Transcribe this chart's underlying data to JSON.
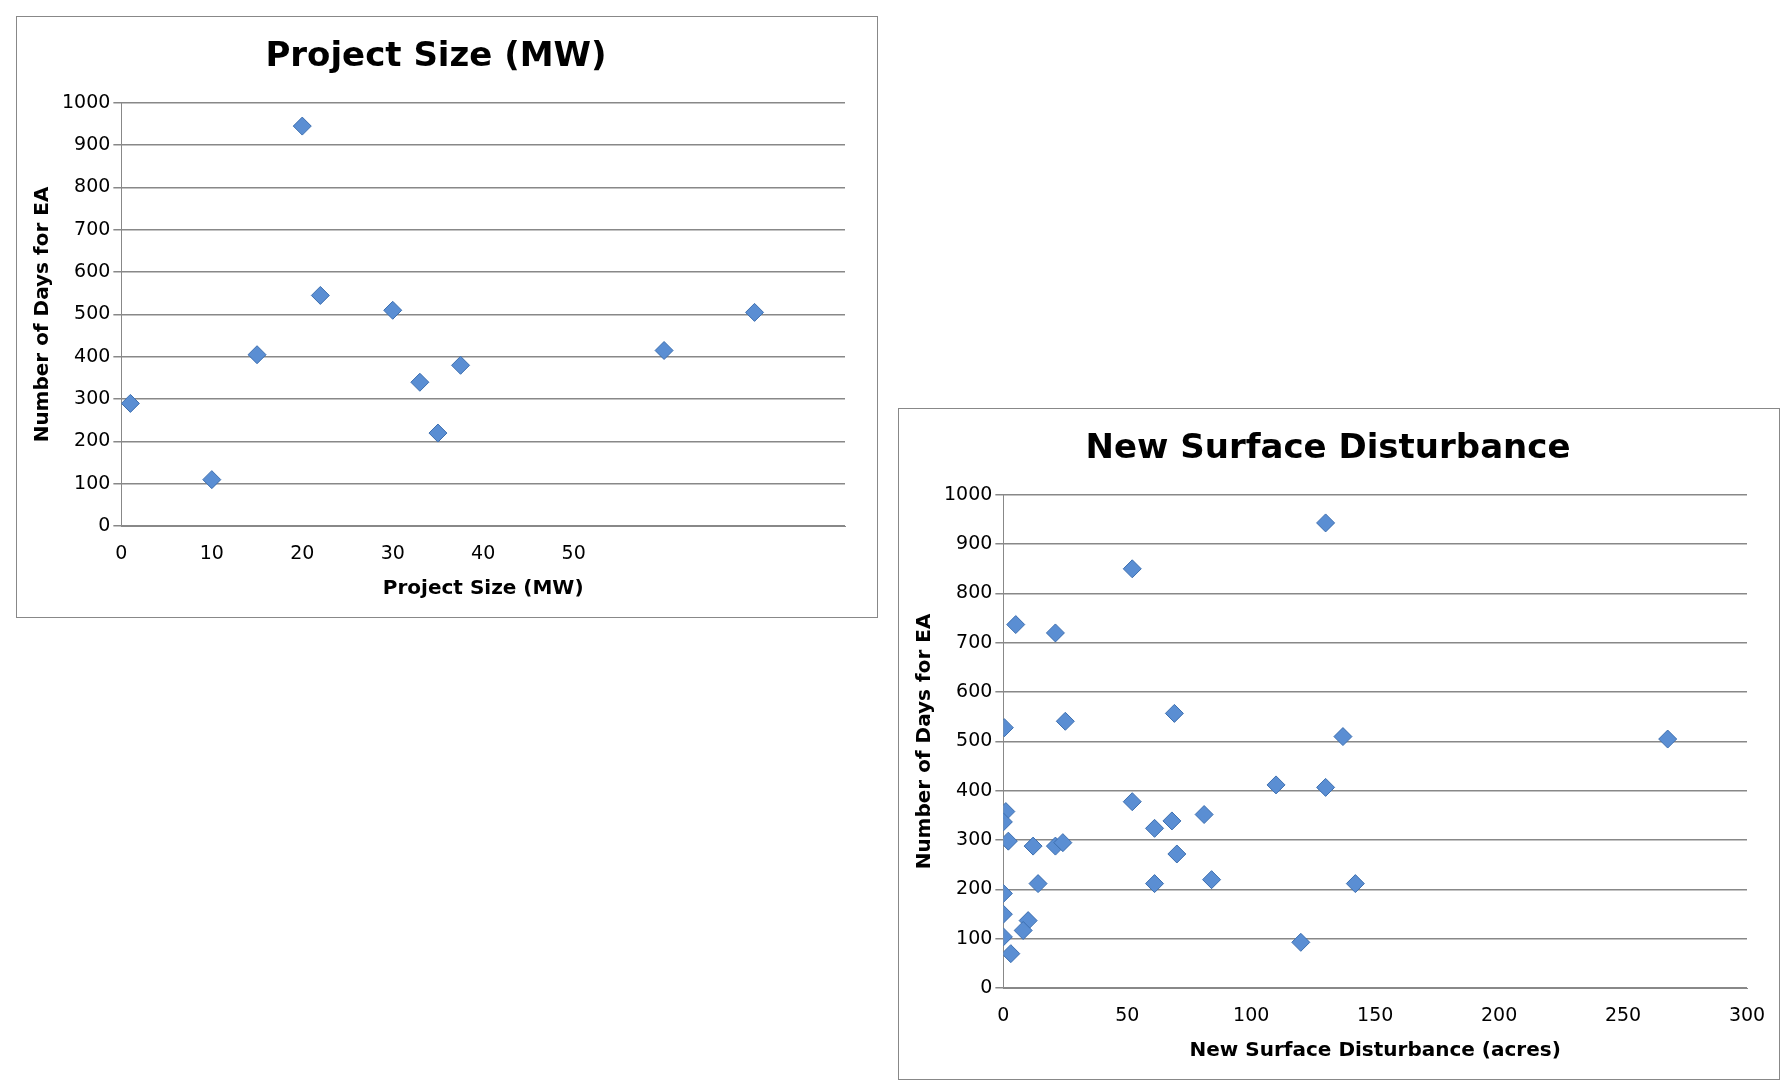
{
  "chart_data": [
    {
      "type": "scatter",
      "title": "Project Size (MW)",
      "xlabel": "Project Size (MW)",
      "ylabel": "Number of Days for EA",
      "x": [
        1,
        10,
        15,
        20,
        22,
        30,
        33,
        35,
        37.5,
        60,
        70
      ],
      "values": [
        290,
        110,
        405,
        945,
        545,
        510,
        340,
        220,
        380,
        415,
        505
      ],
      "color": "#5a8ed3",
      "marker": "diamond",
      "xlim": [
        0,
        80
      ],
      "xticks": [
        0,
        10,
        20,
        30,
        40,
        50
      ],
      "ylim": [
        0,
        1000
      ],
      "yticks": [
        0,
        100,
        200,
        300,
        400,
        500,
        600,
        700,
        800,
        900,
        1000
      ],
      "grid": "y",
      "legend": false
    },
    {
      "type": "scatter",
      "title": "New Surface Disturbance",
      "xlabel": "New Surface Disturbance (acres)",
      "ylabel": "Number of Days for EA",
      "x": [
        52,
        130,
        5,
        21,
        0.4,
        25,
        69,
        137,
        268,
        110,
        130,
        52,
        1,
        0,
        61,
        68,
        81,
        2,
        12,
        21,
        24,
        70,
        14,
        61,
        84,
        142,
        0,
        0,
        10,
        8,
        0,
        3,
        120
      ],
      "values": [
        850,
        943,
        737,
        720,
        528,
        541,
        557,
        510,
        505,
        412,
        407,
        378,
        358,
        337,
        324,
        339,
        352,
        298,
        288,
        288,
        295,
        272,
        212,
        212,
        220,
        212,
        192,
        150,
        137,
        117,
        104,
        70,
        93
      ],
      "color": "#5a8ed3",
      "marker": "diamond",
      "xlim": [
        0,
        300
      ],
      "xticks": [
        0,
        50,
        100,
        150,
        200,
        250,
        300
      ],
      "ylim": [
        0,
        1000
      ],
      "yticks": [
        0,
        100,
        200,
        300,
        400,
        500,
        600,
        700,
        800,
        900,
        1000
      ],
      "grid": "y",
      "legend": false
    }
  ]
}
